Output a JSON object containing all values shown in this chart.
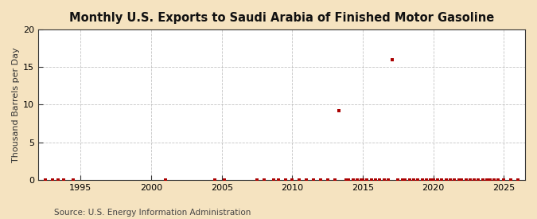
{
  "title": "Monthly U.S. Exports to Saudi Arabia of Finished Motor Gasoline",
  "ylabel": "Thousand Barrels per Day",
  "source_text": "Source: U.S. Energy Information Administration",
  "background_color": "#f5e3c0",
  "plot_background_color": "#ffffff",
  "xlim": [
    1992.0,
    2026.5
  ],
  "ylim": [
    0,
    20
  ],
  "yticks": [
    0,
    5,
    10,
    15,
    20
  ],
  "xticks": [
    1995,
    2000,
    2005,
    2010,
    2015,
    2020,
    2025
  ],
  "grid_color": "#aaaaaa",
  "dot_color": "#aa0000",
  "data_points": [
    [
      1992.5,
      0.0
    ],
    [
      1993.0,
      0.0
    ],
    [
      1993.4,
      0.0
    ],
    [
      1993.8,
      0.0
    ],
    [
      1994.5,
      0.0
    ],
    [
      2001.0,
      0.0
    ],
    [
      2004.5,
      0.0
    ],
    [
      2005.2,
      0.0
    ],
    [
      2007.5,
      0.0
    ],
    [
      2008.0,
      0.0
    ],
    [
      2008.7,
      0.0
    ],
    [
      2009.0,
      0.0
    ],
    [
      2009.5,
      0.0
    ],
    [
      2010.0,
      0.0
    ],
    [
      2010.5,
      0.0
    ],
    [
      2011.0,
      0.0
    ],
    [
      2011.5,
      0.0
    ],
    [
      2012.0,
      0.0
    ],
    [
      2012.5,
      0.0
    ],
    [
      2013.0,
      0.0
    ],
    [
      2013.3,
      9.2
    ],
    [
      2013.8,
      0.0
    ],
    [
      2014.0,
      0.0
    ],
    [
      2014.3,
      0.0
    ],
    [
      2014.6,
      0.0
    ],
    [
      2014.9,
      0.0
    ],
    [
      2015.0,
      0.0
    ],
    [
      2015.3,
      0.0
    ],
    [
      2015.6,
      0.0
    ],
    [
      2015.9,
      0.0
    ],
    [
      2016.2,
      0.0
    ],
    [
      2016.5,
      0.0
    ],
    [
      2016.8,
      0.0
    ],
    [
      2017.1,
      16.0
    ],
    [
      2017.5,
      0.0
    ],
    [
      2017.8,
      0.0
    ],
    [
      2018.0,
      0.0
    ],
    [
      2018.3,
      0.0
    ],
    [
      2018.6,
      0.0
    ],
    [
      2018.9,
      0.0
    ],
    [
      2019.2,
      0.0
    ],
    [
      2019.5,
      0.0
    ],
    [
      2019.8,
      0.0
    ],
    [
      2020.0,
      0.0
    ],
    [
      2020.3,
      0.0
    ],
    [
      2020.6,
      0.0
    ],
    [
      2020.9,
      0.0
    ],
    [
      2021.2,
      0.0
    ],
    [
      2021.5,
      0.0
    ],
    [
      2021.8,
      0.0
    ],
    [
      2022.0,
      0.0
    ],
    [
      2022.3,
      0.0
    ],
    [
      2022.6,
      0.0
    ],
    [
      2022.9,
      0.0
    ],
    [
      2023.2,
      0.0
    ],
    [
      2023.5,
      0.0
    ],
    [
      2023.8,
      0.0
    ],
    [
      2024.0,
      0.0
    ],
    [
      2024.3,
      0.0
    ],
    [
      2024.6,
      0.0
    ],
    [
      2025.0,
      0.0
    ],
    [
      2025.5,
      0.0
    ],
    [
      2026.0,
      0.0
    ]
  ],
  "title_fontsize": 10.5,
  "ylabel_fontsize": 8,
  "tick_fontsize": 8,
  "source_fontsize": 7.5
}
